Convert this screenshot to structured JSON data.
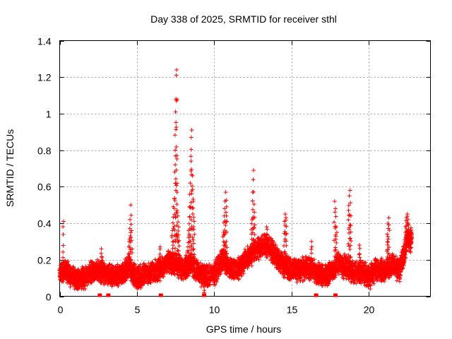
{
  "chart_data": {
    "type": "scatter",
    "title": "Day 338 of 2025, SRMTID for receiver sthl",
    "xlabel": "GPS time / hours",
    "ylabel": "SRMTID / TECUs",
    "xlim": [
      0,
      24
    ],
    "ylim": [
      0,
      1.4
    ],
    "xticks": [
      0,
      5,
      10,
      15,
      20
    ],
    "yticks": [
      0,
      0.2,
      0.4,
      0.6,
      0.8,
      1,
      1.2,
      1.4
    ],
    "xtick_labels": [
      "0",
      "5",
      "10",
      "15",
      "20"
    ],
    "ytick_labels": [
      "0",
      "0.2",
      "0.4",
      "0.6",
      "0.8",
      "1",
      "1.2",
      "1.4"
    ],
    "grid": true,
    "marker": "+",
    "color": "#ff0000",
    "baseline_profile": [
      [
        0.0,
        0.13
      ],
      [
        0.4,
        0.14
      ],
      [
        0.8,
        0.1
      ],
      [
        1.2,
        0.09
      ],
      [
        1.6,
        0.1
      ],
      [
        2.0,
        0.13
      ],
      [
        2.5,
        0.15
      ],
      [
        3.0,
        0.12
      ],
      [
        3.5,
        0.11
      ],
      [
        4.0,
        0.12
      ],
      [
        4.5,
        0.16
      ],
      [
        5.0,
        0.1
      ],
      [
        5.5,
        0.12
      ],
      [
        6.0,
        0.13
      ],
      [
        6.5,
        0.15
      ],
      [
        7.0,
        0.19
      ],
      [
        7.5,
        0.18
      ],
      [
        8.0,
        0.15
      ],
      [
        8.5,
        0.18
      ],
      [
        9.0,
        0.12
      ],
      [
        9.5,
        0.11
      ],
      [
        10.0,
        0.12
      ],
      [
        10.5,
        0.2
      ],
      [
        11.0,
        0.16
      ],
      [
        11.5,
        0.14
      ],
      [
        12.0,
        0.2
      ],
      [
        12.5,
        0.24
      ],
      [
        13.0,
        0.27
      ],
      [
        13.5,
        0.28
      ],
      [
        14.0,
        0.22
      ],
      [
        14.5,
        0.17
      ],
      [
        15.0,
        0.15
      ],
      [
        15.5,
        0.14
      ],
      [
        16.0,
        0.16
      ],
      [
        16.5,
        0.14
      ],
      [
        17.0,
        0.11
      ],
      [
        17.5,
        0.13
      ],
      [
        18.0,
        0.18
      ],
      [
        18.5,
        0.16
      ],
      [
        19.0,
        0.13
      ],
      [
        19.5,
        0.14
      ],
      [
        20.0,
        0.11
      ],
      [
        20.5,
        0.15
      ],
      [
        21.0,
        0.14
      ],
      [
        21.5,
        0.17
      ],
      [
        22.0,
        0.14
      ],
      [
        22.5,
        0.3
      ],
      [
        22.8,
        0.31
      ]
    ],
    "spikes": [
      {
        "x": 0.25,
        "y": 0.41
      },
      {
        "x": 2.7,
        "y": 0.26
      },
      {
        "x": 4.5,
        "y": 0.3
      },
      {
        "x": 4.55,
        "y": 0.42
      },
      {
        "x": 4.6,
        "y": 0.5
      },
      {
        "x": 4.65,
        "y": 0.36
      },
      {
        "x": 6.5,
        "y": 0.27
      },
      {
        "x": 7.3,
        "y": 0.36
      },
      {
        "x": 7.35,
        "y": 0.49
      },
      {
        "x": 7.45,
        "y": 0.68
      },
      {
        "x": 7.48,
        "y": 0.8
      },
      {
        "x": 7.5,
        "y": 1.01
      },
      {
        "x": 7.52,
        "y": 1.08
      },
      {
        "x": 7.55,
        "y": 1.21
      },
      {
        "x": 7.57,
        "y": 1.24
      },
      {
        "x": 7.6,
        "y": 0.57
      },
      {
        "x": 7.65,
        "y": 0.44
      },
      {
        "x": 7.7,
        "y": 0.38
      },
      {
        "x": 8.3,
        "y": 0.27
      },
      {
        "x": 8.35,
        "y": 0.36
      },
      {
        "x": 8.4,
        "y": 0.49
      },
      {
        "x": 8.45,
        "y": 0.62
      },
      {
        "x": 8.5,
        "y": 0.74
      },
      {
        "x": 8.52,
        "y": 0.87
      },
      {
        "x": 8.55,
        "y": 0.91
      },
      {
        "x": 8.6,
        "y": 0.66
      },
      {
        "x": 8.65,
        "y": 0.52
      },
      {
        "x": 8.7,
        "y": 0.41
      },
      {
        "x": 9.35,
        "y": 0.02
      },
      {
        "x": 10.6,
        "y": 0.35
      },
      {
        "x": 10.65,
        "y": 0.44
      },
      {
        "x": 10.7,
        "y": 0.52
      },
      {
        "x": 10.75,
        "y": 0.57
      },
      {
        "x": 10.8,
        "y": 0.49
      },
      {
        "x": 12.45,
        "y": 0.42
      },
      {
        "x": 12.5,
        "y": 0.57
      },
      {
        "x": 12.55,
        "y": 0.69
      },
      {
        "x": 12.6,
        "y": 0.46
      },
      {
        "x": 13.4,
        "y": 0.38
      },
      {
        "x": 14.55,
        "y": 0.41
      },
      {
        "x": 14.6,
        "y": 0.45
      },
      {
        "x": 14.65,
        "y": 0.43
      },
      {
        "x": 16.3,
        "y": 0.3
      },
      {
        "x": 17.8,
        "y": 0.52
      },
      {
        "x": 17.85,
        "y": 0.48
      },
      {
        "x": 17.9,
        "y": 0.38
      },
      {
        "x": 18.7,
        "y": 0.47
      },
      {
        "x": 18.75,
        "y": 0.55
      },
      {
        "x": 18.8,
        "y": 0.58
      },
      {
        "x": 18.85,
        "y": 0.44
      },
      {
        "x": 19.4,
        "y": 0.28
      },
      {
        "x": 20.1,
        "y": 0.04
      },
      {
        "x": 21.2,
        "y": 0.34
      },
      {
        "x": 21.25,
        "y": 0.4
      },
      {
        "x": 21.3,
        "y": 0.43
      },
      {
        "x": 22.4,
        "y": 0.38
      },
      {
        "x": 22.45,
        "y": 0.43
      },
      {
        "x": 22.5,
        "y": 0.45
      },
      {
        "x": 22.55,
        "y": 0.42
      }
    ],
    "zero_markers_x": [
      2.6,
      3.15,
      6.55,
      9.35,
      16.6,
      17.85
    ]
  }
}
